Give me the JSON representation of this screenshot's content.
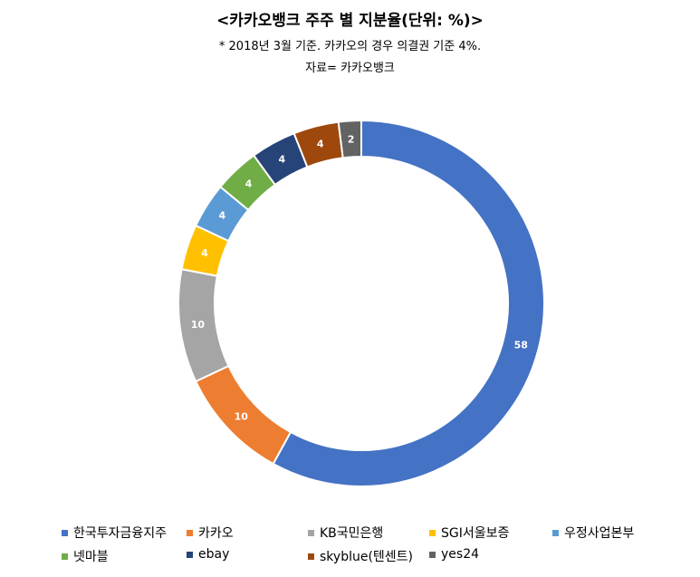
{
  "chart_data": {
    "type": "donut",
    "title": "<카카오뱅크 주주 별 지분율(단위: %)>",
    "subtitles": [
      "* 2018년 3월 기준. 카카오의 경우 의결권 기준 4%.",
      "자료= 카카오뱅크"
    ],
    "categories": [
      "한국투자금융지주",
      "카카오",
      "KB국민은행",
      "SGI서울보증",
      "우정사업본부",
      "넷마블",
      "ebay",
      "skyblue(텐센트)",
      "yes24"
    ],
    "values": [
      58,
      10,
      10,
      4,
      4,
      4,
      4,
      4,
      2
    ],
    "colors": [
      "#4472C4",
      "#ED7D31",
      "#A5A5A5",
      "#FFC000",
      "#5B9BD5",
      "#70AD47",
      "#264478",
      "#9E480E",
      "#636363"
    ],
    "legend_position": "bottom"
  }
}
